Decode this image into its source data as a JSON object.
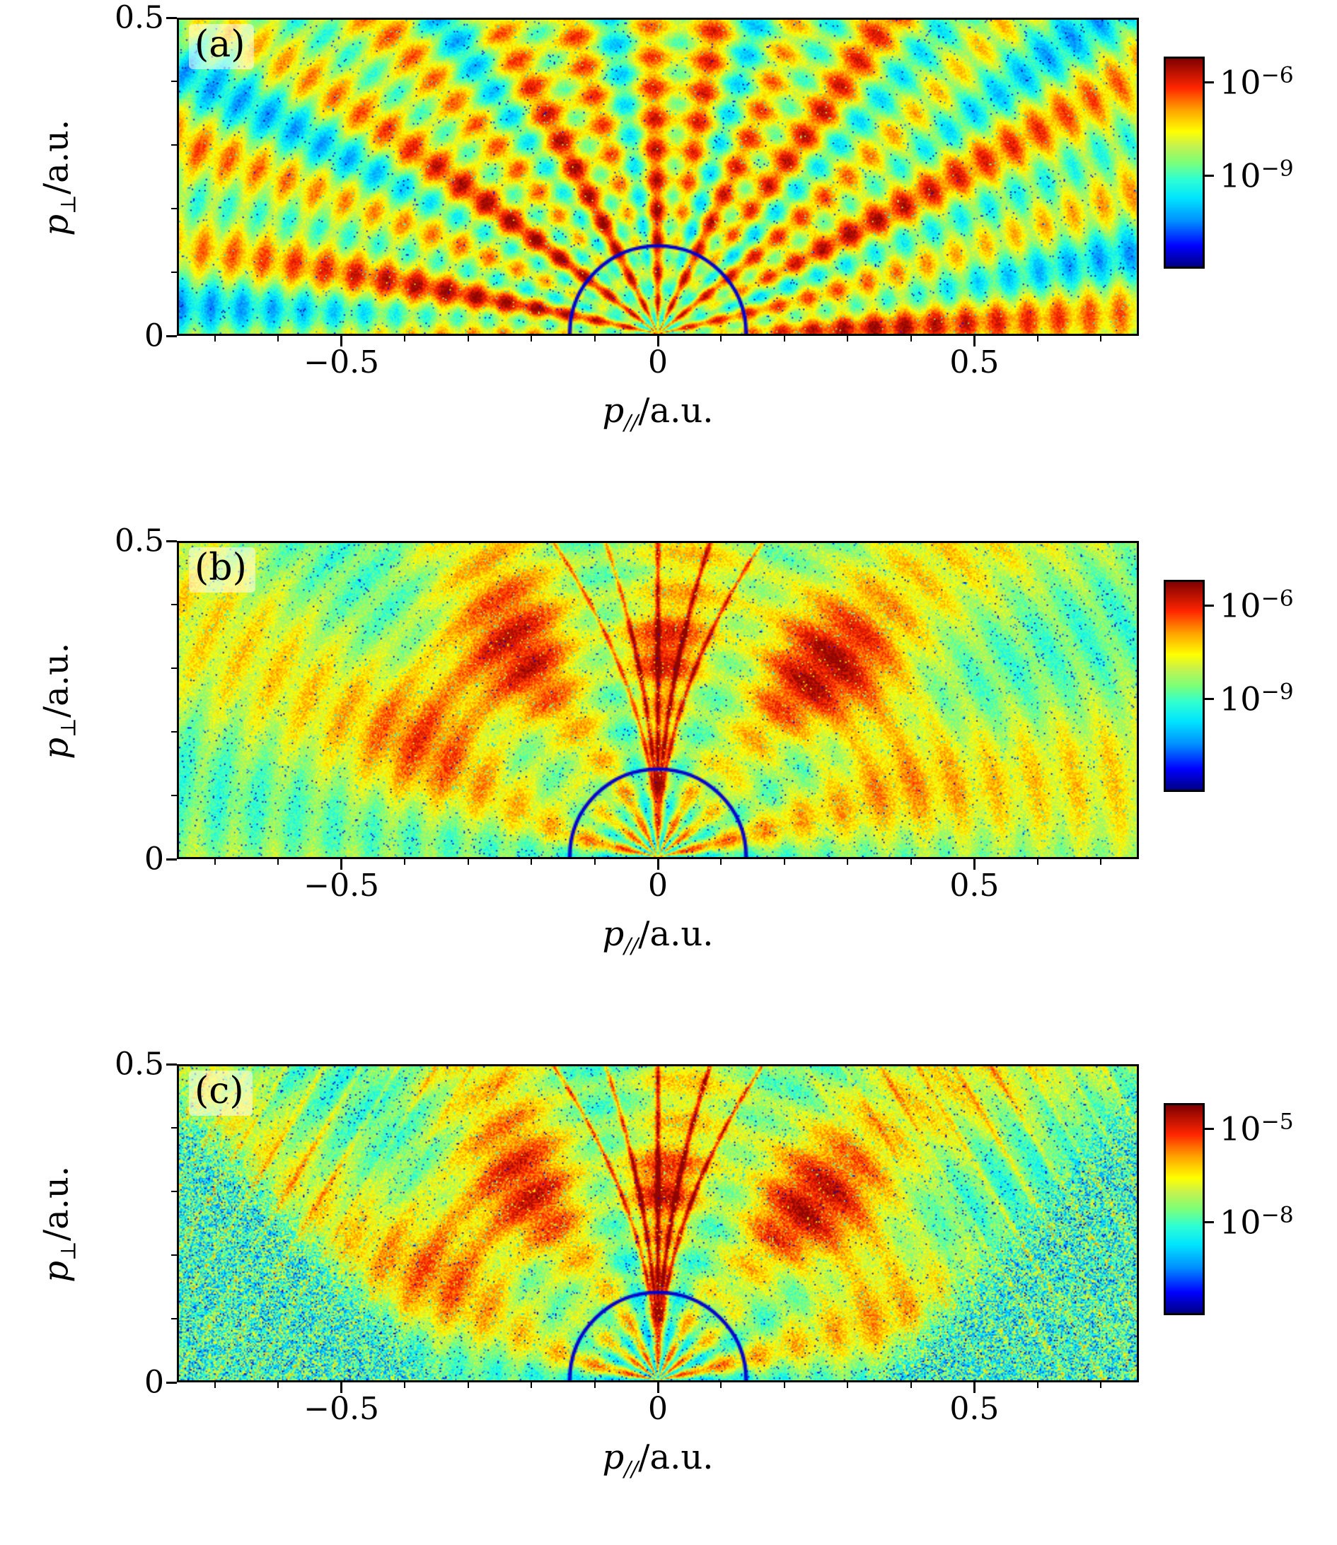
{
  "chart_data": {
    "type": "heatmap",
    "description": "Three-panel photoelectron momentum distribution figure with logarithmic jet colormaps and a blue semicircle annotation at the origin of each panel",
    "x_range": [
      -0.76,
      0.76
    ],
    "y_range": [
      0,
      0.5
    ],
    "x_minor_step": 0.1,
    "y_minor_step": 0.1,
    "colormap": {
      "stops": [
        [
          0.0,
          "#000085"
        ],
        [
          0.1,
          "#0000ff"
        ],
        [
          0.22,
          "#0090ff"
        ],
        [
          0.33,
          "#00e5ff"
        ],
        [
          0.42,
          "#2effd2"
        ],
        [
          0.5,
          "#7cff79"
        ],
        [
          0.58,
          "#c4f24e"
        ],
        [
          0.65,
          "#ffff00"
        ],
        [
          0.75,
          "#ffa500"
        ],
        [
          0.86,
          "#ff2500"
        ],
        [
          1.0,
          "#7f0000"
        ]
      ]
    },
    "panels": [
      {
        "label": "(a)",
        "xlabel": {
          "main": "p",
          "sub": "//",
          "rest": "/a.u."
        },
        "ylabel": {
          "main": "p",
          "sub": "⊥",
          "rest": "/a.u."
        },
        "x_ticks": [
          {
            "value": -0.5,
            "text": "−0.5"
          },
          {
            "value": 0,
            "text": "0"
          },
          {
            "value": 0.5,
            "text": "0.5"
          }
        ],
        "y_ticks": [
          {
            "value": 0.5,
            "text": "0.5"
          },
          {
            "value": 0,
            "text": "0"
          }
        ],
        "colorbar_ticks": [
          {
            "base": "10",
            "exp": "−6",
            "pos": 0.12
          },
          {
            "base": "10",
            "exp": "−9",
            "pos": 0.56
          }
        ],
        "annotation": {
          "type": "semicircle",
          "radius_au": 0.14,
          "color": "#0000cc"
        },
        "pattern": {
          "seed": 11,
          "style": "radial-stripes-rings-fan"
        }
      },
      {
        "label": "(b)",
        "xlabel": {
          "main": "p",
          "sub": "//",
          "rest": "/a.u."
        },
        "ylabel": {
          "main": "p",
          "sub": "⊥",
          "rest": "/a.u."
        },
        "x_ticks": [
          {
            "value": -0.5,
            "text": "−0.5"
          },
          {
            "value": 0,
            "text": "0"
          },
          {
            "value": 0.5,
            "text": "0.5"
          }
        ],
        "y_ticks": [
          {
            "value": 0.5,
            "text": "0.5"
          },
          {
            "value": 0,
            "text": "0"
          }
        ],
        "colorbar_ticks": [
          {
            "base": "10",
            "exp": "−6",
            "pos": 0.12
          },
          {
            "base": "10",
            "exp": "−9",
            "pos": 0.56
          }
        ],
        "annotation": {
          "type": "semicircle",
          "radius_au": 0.14,
          "color": "#0000cc"
        },
        "pattern": {
          "seed": 23,
          "style": "arc-crescents-fork-fan"
        }
      },
      {
        "label": "(c)",
        "xlabel": {
          "main": "p",
          "sub": "//",
          "rest": "/a.u."
        },
        "ylabel": {
          "main": "p",
          "sub": "⊥",
          "rest": "/a.u."
        },
        "x_ticks": [
          {
            "value": -0.5,
            "text": "−0.5"
          },
          {
            "value": 0,
            "text": "0"
          },
          {
            "value": 0.5,
            "text": "0.5"
          }
        ],
        "y_ticks": [
          {
            "value": 0.5,
            "text": "0.5"
          },
          {
            "value": 0,
            "text": "0"
          }
        ],
        "colorbar_ticks": [
          {
            "base": "10",
            "exp": "−5",
            "pos": 0.12
          },
          {
            "base": "10",
            "exp": "−8",
            "pos": 0.56
          }
        ],
        "annotation": {
          "type": "semicircle",
          "radius_au": 0.14,
          "color": "#0000cc"
        },
        "pattern": {
          "seed": 37,
          "style": "arc-crescents-fork-speckled-corners"
        }
      }
    ]
  }
}
